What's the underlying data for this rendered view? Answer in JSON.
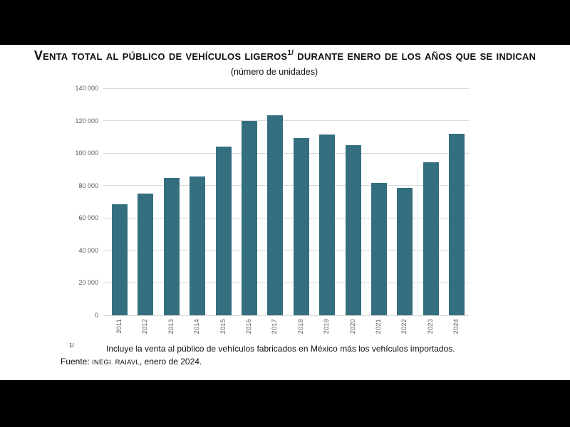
{
  "header": {
    "title_main": "Venta total al público de vehículos ligeros",
    "title_sup": "1/",
    "title_rest": " durante enero de los años que se indican",
    "subtitle": "(número de unidades)"
  },
  "chart_data": {
    "type": "bar",
    "title": "Venta total al público de vehículos ligeros 1/ durante enero de los años que se indican",
    "subtitle": "(número de unidades)",
    "categories": [
      "2011",
      "2012",
      "2013",
      "2014",
      "2015",
      "2016",
      "2017",
      "2018",
      "2019",
      "2020",
      "2021",
      "2022",
      "2023",
      "2024"
    ],
    "values": [
      68500,
      75000,
      84500,
      85500,
      104000,
      120000,
      123500,
      109500,
      111500,
      105000,
      81500,
      78500,
      94500,
      112000
    ],
    "xlabel": "",
    "ylabel": "",
    "ylim": [
      0,
      140000
    ],
    "ytick_step": 20000,
    "ytick_labels": [
      "0",
      "20 000",
      "40 000",
      "60 000",
      "80 000",
      "100 000",
      "120 000",
      "140 000"
    ],
    "grid": true,
    "legend": false,
    "bar_color": "#346f80",
    "gridline_color": "#d9d9d9",
    "axis_text_color": "#595959"
  },
  "footnotes": {
    "marker": "1/",
    "note": "Incluye la venta al público de vehículos fabricados en México más los vehículos importados.",
    "source_prefix": "Fuente: ",
    "source_institution": "INEGI. RAIAVL",
    "source_suffix": ", enero de 2024."
  }
}
